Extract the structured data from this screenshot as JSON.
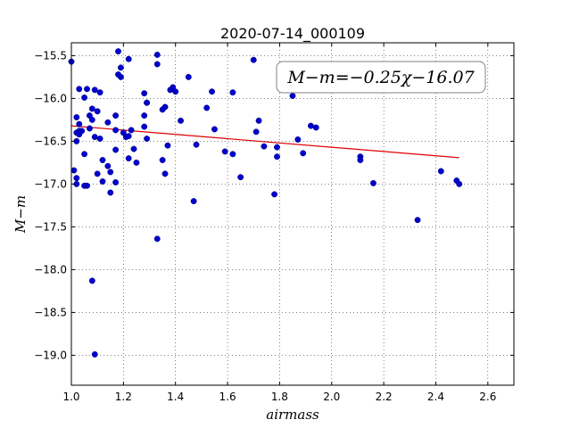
{
  "chart_data": {
    "type": "scatter",
    "title": "2020-07-14_000109",
    "xlabel": "airmass",
    "ylabel": "M−m",
    "xlim": [
      1.0,
      2.7
    ],
    "ylim": [
      -19.35,
      -15.35
    ],
    "y_inverted": true,
    "grid": true,
    "grid_style": "dotted",
    "x_ticks": [
      1.0,
      1.2,
      1.4,
      1.6,
      1.8,
      2.0,
      2.2,
      2.4,
      2.6
    ],
    "x_tick_labels": [
      "1.0",
      "1.2",
      "1.4",
      "1.6",
      "1.8",
      "2.0",
      "2.2",
      "2.4",
      "2.6"
    ],
    "y_ticks": [
      -15.5,
      -16.0,
      -16.5,
      -17.0,
      -17.5,
      -18.0,
      -18.5,
      -19.0
    ],
    "y_tick_labels": [
      "−15.5",
      "−16.0",
      "−16.5",
      "−17.0",
      "−17.5",
      "−18.0",
      "−18.5",
      "−19.0"
    ],
    "annotation": "M−m=−0.25χ−16.07",
    "point_color": "#0000cc",
    "fit_color": "#dd0000",
    "fit": {
      "slope": -0.25,
      "intercept": -16.07,
      "x_range": [
        1.0,
        2.49
      ]
    },
    "series": [
      {
        "points": [
          [
            1.0,
            -15.57
          ],
          [
            1.01,
            -16.84
          ],
          [
            1.02,
            -16.22
          ],
          [
            1.02,
            -16.4
          ],
          [
            1.02,
            -16.5
          ],
          [
            1.02,
            -17.0
          ],
          [
            1.02,
            -16.93
          ],
          [
            1.03,
            -16.3
          ],
          [
            1.03,
            -16.38
          ],
          [
            1.03,
            -16.42
          ],
          [
            1.03,
            -15.89
          ],
          [
            1.04,
            -16.38
          ],
          [
            1.05,
            -15.99
          ],
          [
            1.05,
            -16.65
          ],
          [
            1.05,
            -17.02
          ],
          [
            1.06,
            -17.02
          ],
          [
            1.06,
            -15.89
          ],
          [
            1.07,
            -16.2
          ],
          [
            1.07,
            -16.35
          ],
          [
            1.08,
            -16.12
          ],
          [
            1.08,
            -16.25
          ],
          [
            1.08,
            -18.13
          ],
          [
            1.09,
            -16.45
          ],
          [
            1.09,
            -15.9
          ],
          [
            1.09,
            -18.99
          ],
          [
            1.1,
            -16.15
          ],
          [
            1.1,
            -16.88
          ],
          [
            1.11,
            -15.93
          ],
          [
            1.11,
            -16.47
          ],
          [
            1.12,
            -16.72
          ],
          [
            1.12,
            -16.97
          ],
          [
            1.14,
            -16.28
          ],
          [
            1.14,
            -16.79
          ],
          [
            1.15,
            -17.1
          ],
          [
            1.15,
            -16.86
          ],
          [
            1.17,
            -16.2
          ],
          [
            1.17,
            -16.37
          ],
          [
            1.17,
            -16.6
          ],
          [
            1.17,
            -16.98
          ],
          [
            1.18,
            -15.45
          ],
          [
            1.18,
            -15.72
          ],
          [
            1.19,
            -15.64
          ],
          [
            1.19,
            -15.75
          ],
          [
            1.2,
            -16.4
          ],
          [
            1.21,
            -16.45
          ],
          [
            1.22,
            -16.44
          ],
          [
            1.22,
            -16.7
          ],
          [
            1.22,
            -15.54
          ],
          [
            1.23,
            -16.37
          ],
          [
            1.24,
            -16.59
          ],
          [
            1.25,
            -16.75
          ],
          [
            1.28,
            -16.2
          ],
          [
            1.28,
            -16.33
          ],
          [
            1.28,
            -15.94
          ],
          [
            1.29,
            -16.05
          ],
          [
            1.29,
            -16.05
          ],
          [
            1.29,
            -16.47
          ],
          [
            1.33,
            -15.6
          ],
          [
            1.33,
            -15.49
          ],
          [
            1.33,
            -17.64
          ],
          [
            1.35,
            -16.72
          ],
          [
            1.35,
            -16.13
          ],
          [
            1.36,
            -16.1
          ],
          [
            1.36,
            -16.88
          ],
          [
            1.37,
            -16.55
          ],
          [
            1.38,
            -15.9
          ],
          [
            1.39,
            -15.87
          ],
          [
            1.4,
            -15.92
          ],
          [
            1.42,
            -16.26
          ],
          [
            1.45,
            -15.75
          ],
          [
            1.47,
            -17.2
          ],
          [
            1.48,
            -16.54
          ],
          [
            1.52,
            -16.11
          ],
          [
            1.54,
            -15.92
          ],
          [
            1.55,
            -16.36
          ],
          [
            1.59,
            -16.62
          ],
          [
            1.62,
            -16.65
          ],
          [
            1.62,
            -15.93
          ],
          [
            1.65,
            -16.92
          ],
          [
            1.7,
            -15.55
          ],
          [
            1.71,
            -16.39
          ],
          [
            1.72,
            -16.26
          ],
          [
            1.74,
            -16.56
          ],
          [
            1.78,
            -17.12
          ],
          [
            1.79,
            -16.68
          ],
          [
            1.79,
            -16.57
          ],
          [
            1.85,
            -15.97
          ],
          [
            1.87,
            -16.48
          ],
          [
            1.89,
            -16.64
          ],
          [
            1.92,
            -16.32
          ],
          [
            1.94,
            -16.34
          ],
          [
            2.11,
            -16.68
          ],
          [
            2.11,
            -16.72
          ],
          [
            2.16,
            -16.99
          ],
          [
            2.33,
            -17.42
          ],
          [
            2.42,
            -16.85
          ],
          [
            2.48,
            -16.96
          ],
          [
            2.49,
            -17.0
          ]
        ]
      }
    ]
  }
}
